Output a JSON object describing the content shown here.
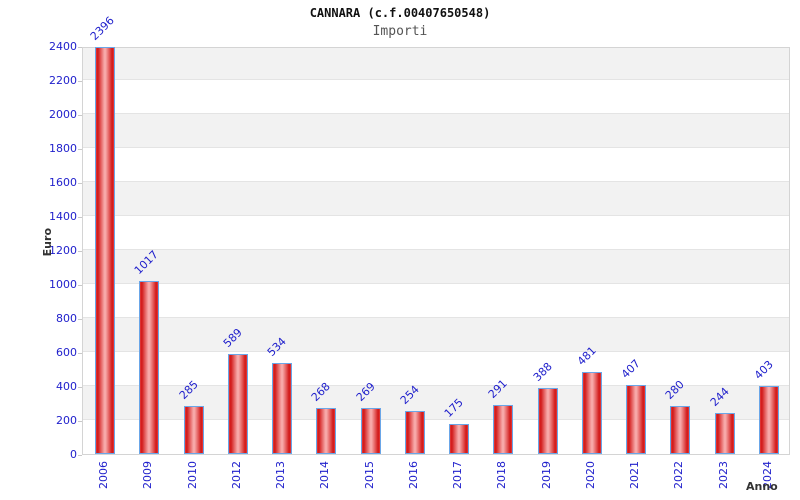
{
  "chart_data": {
    "type": "bar",
    "title": "CANNARA (c.f.00407650548)",
    "subtitle": "Importi",
    "xlabel": "Anno",
    "ylabel": "Euro",
    "categories": [
      "2006",
      "2009",
      "2010",
      "2012",
      "2013",
      "2014",
      "2015",
      "2016",
      "2017",
      "2018",
      "2019",
      "2020",
      "2021",
      "2022",
      "2023",
      "2024"
    ],
    "values": [
      2396,
      1017,
      285,
      589,
      534,
      268,
      269,
      254,
      175,
      291,
      388,
      481,
      407,
      280,
      244,
      403
    ],
    "ylim": [
      0,
      2400
    ],
    "ytick_step": 200,
    "ytick_labels": [
      "0",
      "200",
      "400",
      "600",
      "800",
      "1000",
      "1200",
      "1400",
      "1600",
      "1800",
      "2000",
      "2200",
      "2400"
    ],
    "grid": true,
    "legend": "none",
    "colors": {
      "bar_edge": "#d11717",
      "bar_highlight": "#f7a8a8",
      "bar_border": "#6aa6e8",
      "label_blue": "#2121cc",
      "band_gray": "#f2f2f2",
      "band_white": "#ffffff",
      "gridline": "#e4e4e4",
      "axis_text": "#333333",
      "subtitle_text": "#555555"
    }
  }
}
